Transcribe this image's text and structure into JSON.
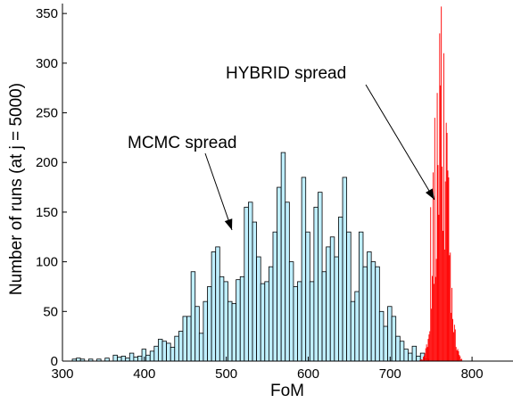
{
  "chart_data": {
    "type": "bar",
    "title": "",
    "xlabel": "FoM",
    "ylabel": "Number of runs (at  j = 5000)",
    "xlim": [
      300,
      850
    ],
    "ylim": [
      0,
      360
    ],
    "xticks": [
      "300",
      "400",
      "500",
      "600",
      "700",
      "800"
    ],
    "yticks": [
      "0",
      "50",
      "100",
      "150",
      "200",
      "250",
      "300",
      "350"
    ],
    "series": [
      {
        "name": "MCMC",
        "color": "#bfefff",
        "edgecolor": "#000000",
        "bin_width": 5,
        "bin_start": 312,
        "values": [
          2,
          3,
          2,
          0,
          2,
          0,
          2,
          0,
          3,
          0,
          6,
          4,
          5,
          3,
          8,
          4,
          5,
          12,
          6,
          10,
          15,
          22,
          20,
          18,
          14,
          25,
          30,
          45,
          45,
          90,
          55,
          28,
          60,
          75,
          110,
          115,
          85,
          80,
          60,
          58,
          82,
          85,
          155,
          160,
          140,
          105,
          78,
          80,
          95,
          130,
          175,
          210,
          160,
          100,
          75,
          80,
          185,
          130,
          80,
          155,
          170,
          90,
          115,
          125,
          105,
          145,
          185,
          130,
          60,
          70,
          130,
          95,
          110,
          100,
          95,
          50,
          35,
          55,
          45,
          25,
          20,
          12,
          8,
          15,
          5,
          8,
          2
        ]
      },
      {
        "name": "HYBRID",
        "color": "#ff0000",
        "bin_width": 1,
        "peak_values": [
          {
            "x": 749,
            "y": 155
          },
          {
            "x": 752,
            "y": 190
          },
          {
            "x": 754,
            "y": 245
          },
          {
            "x": 757,
            "y": 270
          },
          {
            "x": 760,
            "y": 330
          },
          {
            "x": 762,
            "y": 357
          },
          {
            "x": 765,
            "y": 310
          },
          {
            "x": 768,
            "y": 240
          },
          {
            "x": 771,
            "y": 185
          }
        ]
      }
    ],
    "annotations": [
      {
        "text": "MCMC spread",
        "x": 530,
        "y": 215
      },
      {
        "text": "HYBRID spread",
        "x": 790,
        "y": 290
      }
    ]
  }
}
